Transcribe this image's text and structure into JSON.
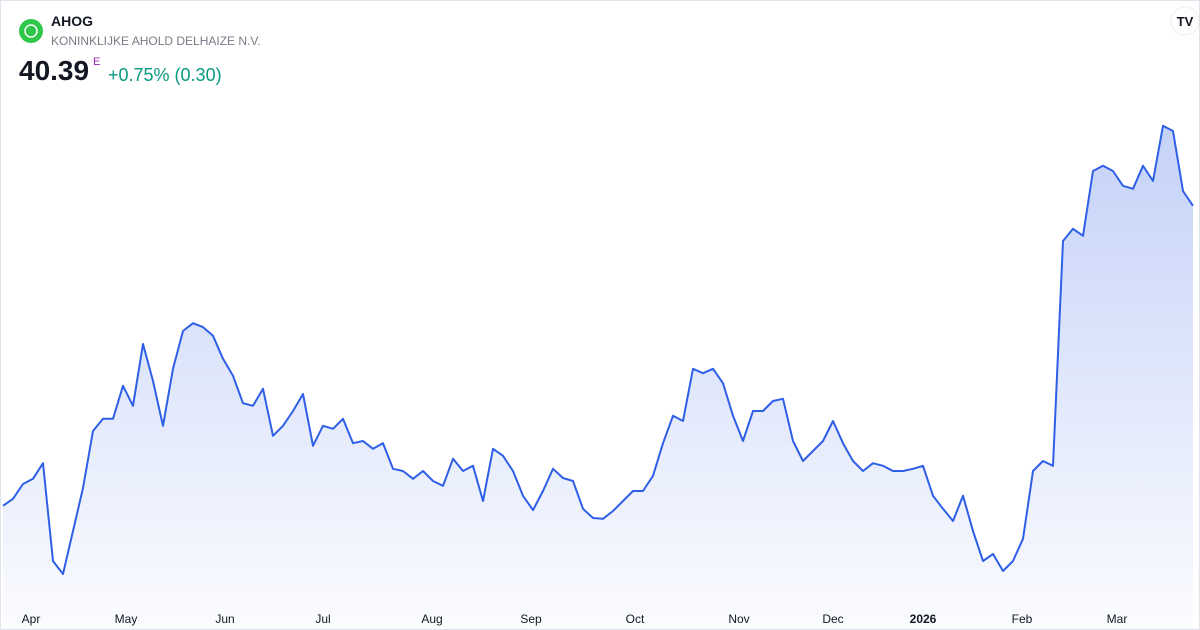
{
  "chart_data": {
    "type": "area",
    "title": "AHOG",
    "subtitle": "KONINKLIJKE AHOLD DELHAIZE N.V.",
    "last_price": 40.39,
    "price_flag": "E",
    "change": "+0.75% (0.30)",
    "color": "#2f5fe6",
    "x": [
      0,
      1,
      2,
      3,
      4,
      5,
      6,
      7,
      8,
      9,
      10,
      11,
      12,
      13,
      14,
      15,
      16,
      17,
      18,
      19,
      20,
      21,
      22,
      23,
      24,
      25,
      26,
      27,
      28,
      29,
      30,
      31,
      32,
      33,
      34,
      35,
      36,
      37,
      38,
      39,
      40,
      41,
      42,
      43,
      44,
      45,
      46,
      47,
      48,
      49,
      50,
      51,
      52,
      53,
      54,
      55,
      56,
      57,
      58,
      59,
      60,
      61,
      62,
      63,
      64,
      65,
      66,
      67,
      68,
      69,
      70,
      71,
      72,
      73,
      74,
      75,
      76,
      77,
      78,
      79,
      80,
      81,
      82,
      83,
      84,
      85,
      86,
      87,
      88,
      89,
      90,
      91,
      92,
      93,
      94,
      95,
      96,
      97,
      98,
      99,
      100,
      101,
      102,
      103,
      104,
      105,
      106,
      107,
      108,
      109,
      110,
      111,
      112,
      113,
      114,
      115,
      116,
      117,
      118,
      119
    ],
    "values": [
      33.49,
      33.65,
      33.99,
      34.11,
      34.47,
      32.22,
      31.92,
      32.91,
      33.9,
      35.21,
      35.49,
      35.49,
      36.25,
      35.79,
      37.21,
      36.36,
      35.33,
      36.64,
      37.51,
      37.69,
      37.6,
      37.4,
      36.87,
      36.48,
      35.85,
      35.79,
      36.18,
      35.1,
      35.33,
      35.67,
      36.06,
      34.87,
      35.33,
      35.26,
      35.49,
      34.93,
      34.98,
      34.8,
      34.93,
      34.34,
      34.29,
      34.11,
      34.29,
      34.06,
      33.95,
      34.57,
      34.29,
      34.41,
      33.6,
      34.8,
      34.64,
      34.29,
      33.72,
      33.39,
      33.83,
      34.34,
      34.13,
      34.06,
      33.42,
      33.21,
      33.19,
      33.37,
      33.6,
      33.83,
      33.83,
      34.18,
      34.93,
      35.56,
      35.44,
      36.64,
      36.54,
      36.64,
      36.31,
      35.56,
      34.98,
      35.67,
      35.67,
      35.9,
      35.95,
      34.98,
      34.52,
      34.75,
      34.98,
      35.44,
      34.93,
      34.52,
      34.29,
      34.47,
      34.41,
      34.29,
      34.29,
      34.34,
      34.41,
      33.72,
      33.42,
      33.14,
      33.72,
      32.91,
      32.22,
      32.38,
      31.99,
      32.22,
      32.73,
      34.29,
      34.52,
      34.41,
      39.58,
      39.86,
      39.7,
      41.19,
      41.31,
      41.19,
      40.85,
      40.78,
      41.31,
      40.96,
      42.23,
      42.11,
      40.73,
      40.39
    ],
    "xlim": [
      0,
      119
    ],
    "ylim": [
      31.3,
      43.03
    ],
    "xticks": [
      {
        "value": 2.8,
        "label": "Apr"
      },
      {
        "value": 12.3,
        "label": "May"
      },
      {
        "value": 22.2,
        "label": "Jun"
      },
      {
        "value": 32,
        "label": "Jul"
      },
      {
        "value": 42.9,
        "label": "Aug"
      },
      {
        "value": 52.8,
        "label": "Sep"
      },
      {
        "value": 63.2,
        "label": "Oct"
      },
      {
        "value": 73.6,
        "label": "Nov"
      },
      {
        "value": 83,
        "label": "Dec"
      },
      {
        "value": 92,
        "label": "2026"
      },
      {
        "value": 101.9,
        "label": "Feb"
      },
      {
        "value": 111.4,
        "label": "Mar"
      }
    ]
  }
}
